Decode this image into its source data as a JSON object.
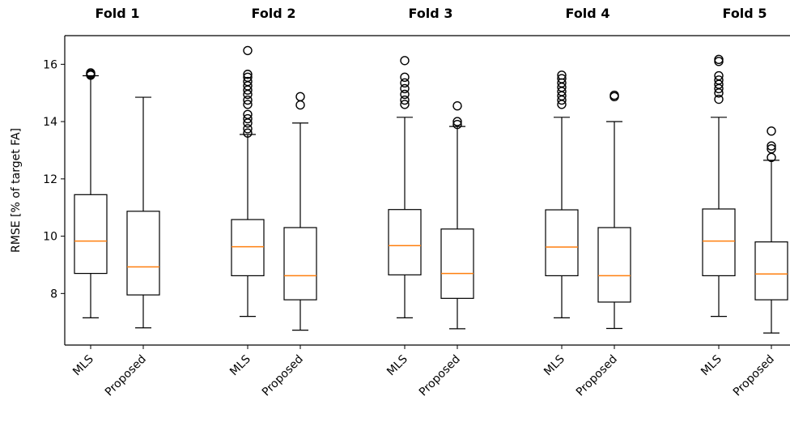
{
  "chart_data": {
    "type": "box",
    "ylabel": "RMSE [% of target FA]",
    "ylim": [
      6.2,
      17.0
    ],
    "yticks": [
      8,
      10,
      12,
      14,
      16
    ],
    "categories": [
      "MLS",
      "Proposed"
    ],
    "colors": {
      "median": "#ff7f0e",
      "box": "#000000"
    },
    "panels": [
      {
        "title": "Fold 1",
        "boxes": [
          {
            "label": "MLS",
            "whisker_low": 7.15,
            "q1": 8.7,
            "median": 9.83,
            "q3": 11.45,
            "whisker_high": 15.6,
            "outliers": [
              15.62,
              15.66,
              15.7
            ]
          },
          {
            "label": "Proposed",
            "whisker_low": 6.8,
            "q1": 7.95,
            "median": 8.93,
            "q3": 10.87,
            "whisker_high": 14.85,
            "outliers": []
          }
        ]
      },
      {
        "title": "Fold 2",
        "boxes": [
          {
            "label": "MLS",
            "whisker_low": 7.2,
            "q1": 8.62,
            "median": 9.63,
            "q3": 10.58,
            "whisker_high": 13.55,
            "outliers": [
              13.6,
              13.75,
              13.95,
              14.1,
              14.25,
              14.6,
              14.75,
              14.95,
              15.1,
              15.25,
              15.4,
              15.55,
              15.65,
              16.48
            ]
          },
          {
            "label": "Proposed",
            "whisker_low": 6.72,
            "q1": 7.78,
            "median": 8.62,
            "q3": 10.3,
            "whisker_high": 13.95,
            "outliers": [
              14.58,
              14.87
            ]
          }
        ]
      },
      {
        "title": "Fold 3",
        "boxes": [
          {
            "label": "MLS",
            "whisker_low": 7.15,
            "q1": 8.65,
            "median": 9.67,
            "q3": 10.93,
            "whisker_high": 14.15,
            "outliers": [
              14.6,
              14.75,
              14.95,
              15.15,
              15.35,
              15.55,
              16.13
            ]
          },
          {
            "label": "Proposed",
            "whisker_low": 6.77,
            "q1": 7.83,
            "median": 8.7,
            "q3": 10.25,
            "whisker_high": 13.83,
            "outliers": [
              13.9,
              14.0,
              14.55
            ]
          }
        ]
      },
      {
        "title": "Fold 4",
        "boxes": [
          {
            "label": "MLS",
            "whisker_low": 7.15,
            "q1": 8.62,
            "median": 9.62,
            "q3": 10.92,
            "whisker_high": 14.15,
            "outliers": [
              14.6,
              14.75,
              14.9,
              15.05,
              15.2,
              15.35,
              15.5,
              15.62
            ]
          },
          {
            "label": "Proposed",
            "whisker_low": 6.78,
            "q1": 7.7,
            "median": 8.62,
            "q3": 10.3,
            "whisker_high": 14.0,
            "outliers": [
              14.87,
              14.92
            ]
          }
        ]
      },
      {
        "title": "Fold 5",
        "boxes": [
          {
            "label": "MLS",
            "whisker_low": 7.2,
            "q1": 8.62,
            "median": 9.83,
            "q3": 10.95,
            "whisker_high": 14.15,
            "outliers": [
              14.78,
              15.0,
              15.15,
              15.3,
              15.45,
              15.6,
              16.1,
              16.17
            ]
          },
          {
            "label": "Proposed",
            "whisker_low": 6.62,
            "q1": 7.78,
            "median": 8.68,
            "q3": 9.8,
            "whisker_high": 12.65,
            "outliers": [
              12.75,
              13.05,
              13.15,
              13.67
            ]
          }
        ]
      }
    ]
  }
}
